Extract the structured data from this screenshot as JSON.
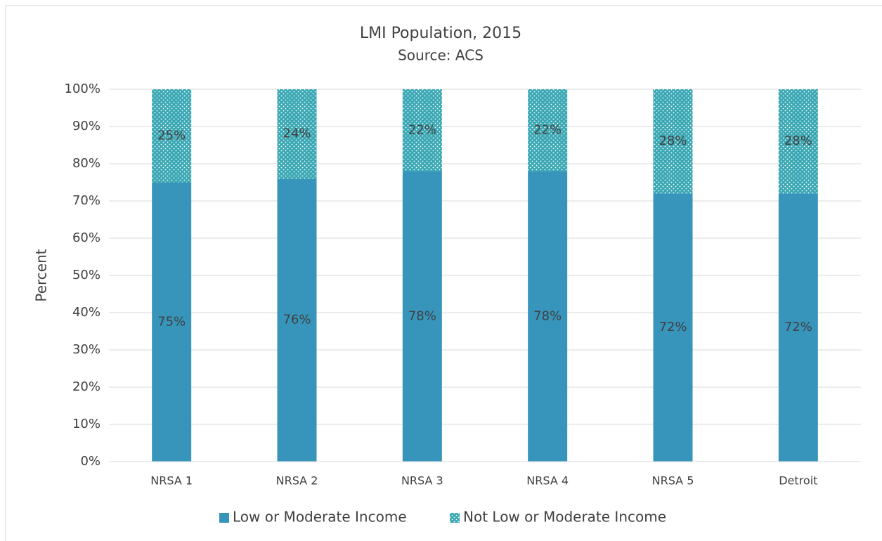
{
  "chart_data": {
    "type": "stacked_bar",
    "title": "LMI Population, 2015",
    "subtitle": "Source: ACS",
    "y_label": "Percent",
    "categories": [
      "NRSA 1",
      "NRSA 2",
      "NRSA 3",
      "NRSA 4",
      "NRSA 5",
      "Detroit"
    ],
    "series": [
      {
        "name": "Low or Moderate Income",
        "color": "#3795bb",
        "pattern": "solid",
        "values": [
          75,
          76,
          78,
          78,
          72,
          72
        ],
        "value_labels": [
          "75%",
          "76%",
          "78%",
          "78%",
          "72%",
          "72%"
        ]
      },
      {
        "name": "Not Low or Moderate Income",
        "color": "#3aa8b4",
        "pattern": "dots",
        "values": [
          25,
          24,
          22,
          22,
          28,
          28
        ],
        "value_labels": [
          "25%",
          "24%",
          "22%",
          "22%",
          "28%",
          "28%"
        ]
      }
    ],
    "ylim": [
      0,
      100
    ],
    "yticks": [
      {
        "value": 0,
        "label": "0%"
      },
      {
        "value": 10,
        "label": "10%"
      },
      {
        "value": 20,
        "label": "20%"
      },
      {
        "value": 30,
        "label": "30%"
      },
      {
        "value": 40,
        "label": "40%"
      },
      {
        "value": 50,
        "label": "50%"
      },
      {
        "value": 60,
        "label": "60%"
      },
      {
        "value": 70,
        "label": "70%"
      },
      {
        "value": 80,
        "label": "80%"
      },
      {
        "value": 90,
        "label": "90%"
      },
      {
        "value": 100,
        "label": "100%"
      }
    ],
    "grid": true,
    "legend": "bottom"
  }
}
